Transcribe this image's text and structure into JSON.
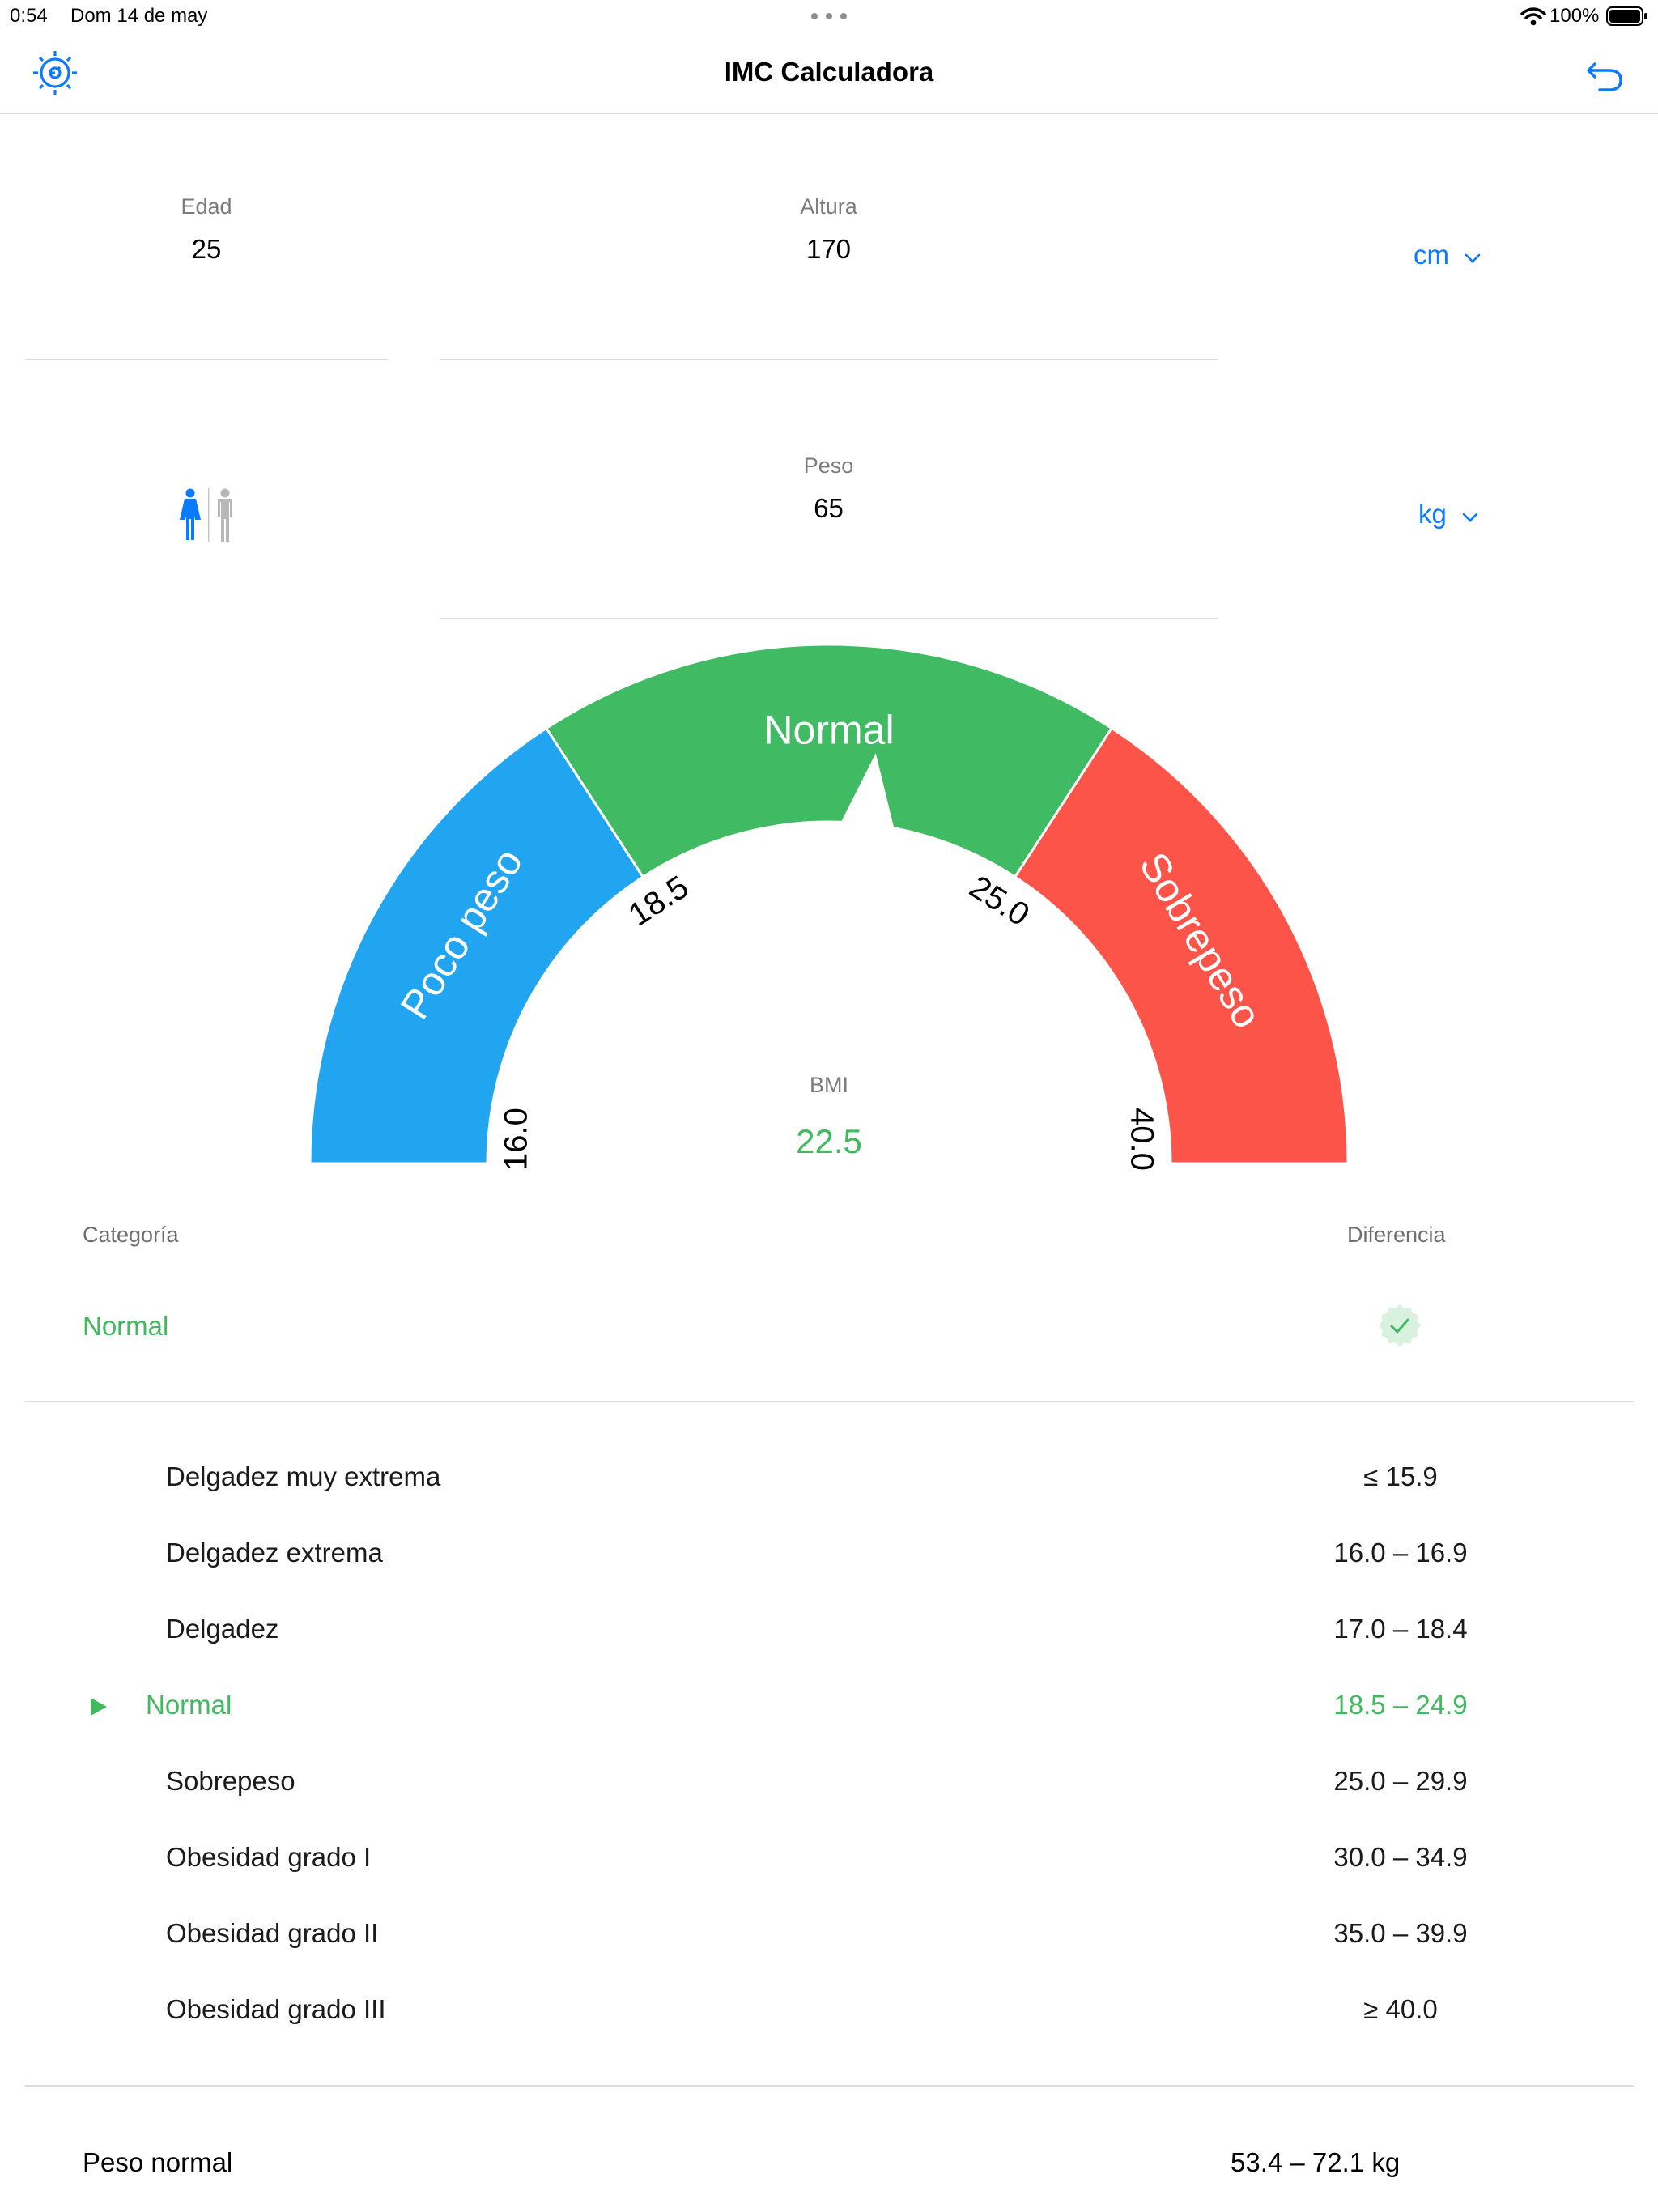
{
  "status_bar": {
    "time": "0:54",
    "date": "Dom 14 de may",
    "battery": "100%"
  },
  "nav": {
    "title": "IMC Calculadora",
    "left_icon": "settings-gear-icon",
    "right_icon": "undo-arrow-icon"
  },
  "inputs": {
    "age": {
      "label": "Edad",
      "value": "25"
    },
    "height": {
      "label": "Altura",
      "value": "170",
      "unit": "cm"
    },
    "weight": {
      "label": "Peso",
      "value": "65",
      "unit": "kg"
    },
    "gender_icons": [
      "female-icon",
      "male-icon"
    ]
  },
  "gauge": {
    "segments": [
      {
        "label": "Poco peso",
        "color": "#22a5f0"
      },
      {
        "label": "Normal",
        "color": "#40bb63"
      },
      {
        "label": "Sobrepeso",
        "color": "#fd5449"
      }
    ],
    "ticks": [
      "16.0",
      "18.5",
      "25.0",
      "40.0"
    ],
    "bmi_label": "BMI",
    "bmi_value": "22.5"
  },
  "result": {
    "category_label": "Categoría",
    "difference_label": "Diferencia",
    "category_value": "Normal"
  },
  "categories": [
    {
      "name": "Delgadez muy extrema",
      "range": "≤ 15.9"
    },
    {
      "name": "Delgadez extrema",
      "range": "16.0 – 16.9"
    },
    {
      "name": "Delgadez",
      "range": "17.0 – 18.4"
    },
    {
      "name": "Normal",
      "range": "18.5 – 24.9",
      "active": true
    },
    {
      "name": "Sobrepeso",
      "range": "25.0 – 29.9"
    },
    {
      "name": "Obesidad grado I",
      "range": "30.0 – 34.9"
    },
    {
      "name": "Obesidad grado II",
      "range": "35.0 – 39.9"
    },
    {
      "name": "Obesidad grado III",
      "range": "≥ 40.0"
    }
  ],
  "normal_weight": {
    "label": "Peso normal",
    "value": "53.4 – 72.1 kg"
  },
  "colors": {
    "accent": "#0a7aff",
    "green": "#3fba5e"
  }
}
